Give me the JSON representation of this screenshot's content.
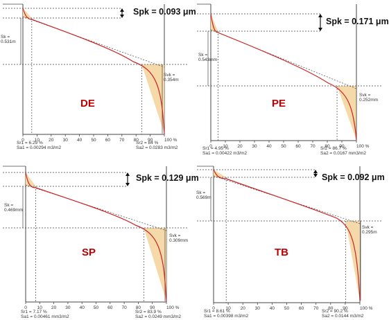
{
  "chart_data": [
    {
      "type": "line",
      "title": "DE",
      "spk_label": "Spk = 0.093 μm",
      "sk_text": [
        "Sk =",
        "0.531m"
      ],
      "svk_text": [
        "Svk =",
        "0.354m"
      ],
      "sr_line1": "Sr1 = 6.29 %",
      "sr_line2": "Sa1 = 0.00294 m3/m2",
      "sr2_line1": "Sr2 = 84 %",
      "sr2_line2": "Sa2 = 0.0283 m3/m2",
      "x_ticks": [
        "0",
        "10",
        "20",
        "30",
        "40",
        "50",
        "60",
        "70",
        "80",
        "90",
        "100 %"
      ],
      "xlim": [
        0,
        100
      ],
      "sr1": 6.29,
      "sr2": 84
    },
    {
      "type": "line",
      "title": "PE",
      "spk_label": "Spk = 0.171 μm",
      "sk_text": [
        "Sk =",
        "0.543mm"
      ],
      "svk_text": [
        "Svk =",
        "0.252mm"
      ],
      "sr_line1": "Sr1 = 4.95 %",
      "sr_line2": "Sa1 = 0.00422 m3/m2",
      "sr2_line1": "Sr2 = 86.7 %",
      "sr2_line2": "Sa2 = 0.0167 mm3/m2",
      "x_ticks": [
        "0",
        "10",
        "20",
        "30",
        "40",
        "50",
        "60",
        "70",
        "80",
        "90",
        "100 %"
      ],
      "xlim": [
        0,
        100
      ],
      "sr1": 4.95,
      "sr2": 86.7
    },
    {
      "type": "line",
      "title": "SP",
      "spk_label": "Spk = 0.129 μm",
      "sk_text": [
        "Sk =",
        "0.469mm"
      ],
      "svk_text": [
        "Svk =",
        "0.309mm"
      ],
      "sr_line1": "Sr1 = 7.17 %",
      "sr_line2": "Sa1 = 0.00461 mm3/m2",
      "sr2_line1": "Sr2 = 83.9 %",
      "sr2_line2": "Sa2 = 0.0249 mm3/m2",
      "x_ticks": [
        "0",
        "10",
        "20",
        "30",
        "40",
        "50",
        "60",
        "70",
        "80",
        "90",
        "100 %"
      ],
      "xlim": [
        0,
        100
      ],
      "sr1": 7.17,
      "sr2": 83.9
    },
    {
      "type": "line",
      "title": "TB",
      "spk_label": "Spk = 0.092 μm",
      "sk_text": [
        "Sk =",
        "0.569m"
      ],
      "svk_text": [
        "Svk =",
        "0.295m"
      ],
      "sr_line1": "Sr1 = 8.61 %",
      "sr_line2": "Sa1 = 0.00398 m3/m2",
      "sr2_line1": "Sr2 = 90.2 %",
      "sr2_line2": "Sa2 = 0.0144 m3/m2",
      "x_ticks": [
        "0",
        "10",
        "20",
        "30",
        "40",
        "50",
        "60",
        "70",
        "80",
        "90",
        "100 %"
      ],
      "xlim": [
        0,
        100
      ],
      "sr1": 8.61,
      "sr2": 90.2
    }
  ],
  "colors": {
    "curve": "#cc2222",
    "fill": "#f6d9a8",
    "axis": "#444444",
    "dashed": "#444444",
    "sample_label": "#c00000"
  }
}
